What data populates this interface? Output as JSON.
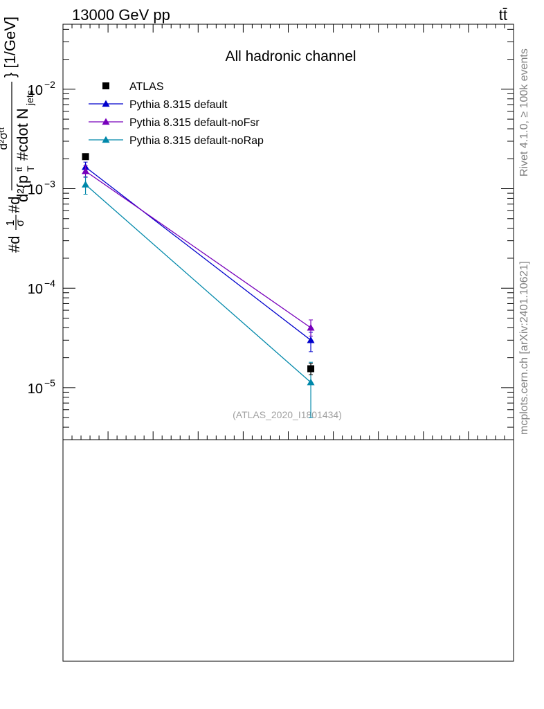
{
  "header": {
    "left_label": "13000 GeV pp",
    "right_label": "tt̄"
  },
  "side_labels": {
    "rivet": "Rivet 4.1.0, ≥ 100k events",
    "mcplots": "mcplots.cern.ch [arXiv:2401.10621]"
  },
  "chart_data": {
    "type": "scatter",
    "title": "All hadronic channel",
    "watermark": "(ATLAS_2020_I1801434)",
    "ylabel": "#d\\frac{1}{\\sigma}#d\\frac{d^{2}\\sigma^{tt}}{d^{2}{p_{T}^{tt} #cdot N_{jets}}} [1/GeV]",
    "ylabel_parts": {
      "prefix": "#d",
      "frac1_num": "1",
      "frac1_den": "σ",
      "middle": "#d",
      "frac2_num": "d²σᵗᵗ",
      "frac2_den": "d²{p",
      "frac2_den_sub": "T",
      "frac2_den_sup": "tt̄",
      "frac2_den_rest": "#cdot N",
      "frac2_den_rest_sub": "jets",
      "unit": "} [1/GeV]"
    },
    "y_scale": "log",
    "ylim": [
      3e-06,
      0.045
    ],
    "y_ticks": [
      {
        "value": 1e-05,
        "base": "10",
        "exp": "−5"
      },
      {
        "value": 0.0001,
        "base": "10",
        "exp": "−4"
      },
      {
        "value": 0.001,
        "base": "10",
        "exp": "−3"
      },
      {
        "value": 0.01,
        "base": "10",
        "exp": "−2"
      }
    ],
    "xlim": [
      0,
      10
    ],
    "legend_placement": "top-left",
    "series": [
      {
        "name": "ATLAS",
        "marker": "square",
        "color": "#000000",
        "connect": false,
        "points": [
          {
            "x": 0.5,
            "y": 0.0021,
            "err_lo": 0.0021,
            "err_hi": 0.0021
          },
          {
            "x": 5.5,
            "y": 1.55e-05,
            "err_lo": 1.35e-05,
            "err_hi": 1.75e-05
          }
        ]
      },
      {
        "name": "Pythia 8.315 default",
        "marker": "triangle",
        "color": "#0000cc",
        "connect": true,
        "points": [
          {
            "x": 0.5,
            "y": 0.00165,
            "err_lo": 0.00145,
            "err_hi": 0.00185
          },
          {
            "x": 5.5,
            "y": 3e-05,
            "err_lo": 2.3e-05,
            "err_hi": 3.6e-05
          }
        ]
      },
      {
        "name": "Pythia 8.315 default-noFsr",
        "marker": "triangle",
        "color": "#7700bb",
        "connect": true,
        "points": [
          {
            "x": 0.5,
            "y": 0.0015,
            "err_lo": 0.0013,
            "err_hi": 0.0017
          },
          {
            "x": 5.5,
            "y": 4e-05,
            "err_lo": 3.3e-05,
            "err_hi": 4.8e-05
          }
        ]
      },
      {
        "name": "Pythia 8.315 default-noRap",
        "marker": "triangle",
        "color": "#0088aa",
        "connect": true,
        "points": [
          {
            "x": 0.5,
            "y": 0.0011,
            "err_lo": 0.00088,
            "err_hi": 0.00132
          },
          {
            "x": 5.5,
            "y": 1.13e-05,
            "err_lo": 5e-06,
            "err_hi": 1.8e-05
          }
        ]
      }
    ]
  }
}
